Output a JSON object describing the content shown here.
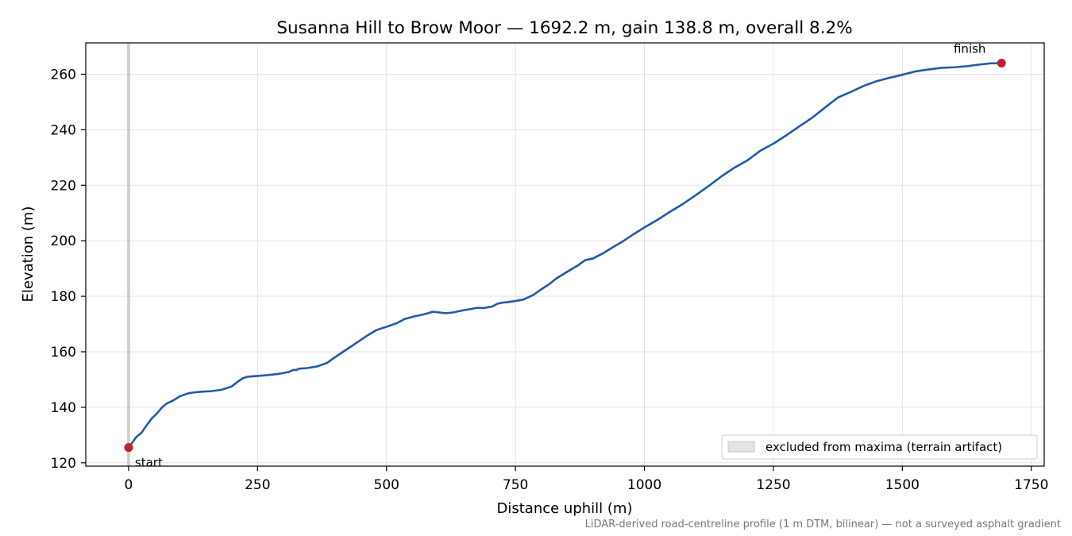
{
  "chart_data": {
    "type": "line",
    "title": "Susanna Hill to Brow Moor — 1692.2 m, gain 138.8 m, overall 8.2%",
    "xlabel": "Distance uphill (m)",
    "ylabel": "Elevation (m)",
    "xlim": [
      -83,
      1775
    ],
    "ylim": [
      118.8,
      271.3
    ],
    "xticks": [
      0,
      250,
      500,
      750,
      1000,
      1250,
      1500,
      1750
    ],
    "yticks": [
      120,
      140,
      160,
      180,
      200,
      220,
      240,
      260
    ],
    "xtick_labels": [
      "0",
      "250",
      "500",
      "750",
      "1000",
      "1250",
      "1500",
      "1750"
    ],
    "ytick_labels": [
      "120",
      "140",
      "160",
      "180",
      "200",
      "220",
      "240",
      "260"
    ],
    "grid": true,
    "series": [
      {
        "color": "#1f5aaa",
        "x": [
          0,
          10,
          15,
          25,
          35,
          45,
          55,
          65,
          75,
          85,
          100,
          115,
          125,
          140,
          160,
          180,
          200,
          210,
          220,
          230,
          250,
          270,
          290,
          310,
          320,
          325,
          330,
          345,
          365,
          385,
          400,
          420,
          440,
          460,
          480,
          500,
          520,
          535,
          555,
          575,
          590,
          600,
          615,
          630,
          645,
          660,
          675,
          690,
          705,
          715,
          725,
          735,
          750,
          765,
          785,
          800,
          815,
          830,
          850,
          870,
          885,
          900,
          920,
          940,
          960,
          980,
          1000,
          1025,
          1050,
          1075,
          1100,
          1125,
          1150,
          1175,
          1200,
          1225,
          1250,
          1275,
          1300,
          1325,
          1350,
          1375,
          1400,
          1425,
          1450,
          1475,
          1500,
          1525,
          1550,
          1575,
          1600,
          1625,
          1645,
          1660,
          1670,
          1690
        ],
        "y": [
          125.5,
          128,
          129.3,
          130.8,
          133.5,
          136,
          137.8,
          140,
          141.5,
          142.3,
          144,
          145,
          145.3,
          145.6,
          145.8,
          146.3,
          147.5,
          149,
          150.3,
          151,
          151.3,
          151.6,
          152,
          152.7,
          153.5,
          153.4,
          153.9,
          154.1,
          154.7,
          156,
          158,
          160.5,
          163,
          165.5,
          167.8,
          169,
          170.3,
          171.8,
          172.8,
          173.6,
          174.4,
          174.2,
          173.9,
          174.2,
          174.8,
          175.3,
          175.8,
          175.8,
          176.3,
          177.3,
          177.7,
          177.9,
          178.3,
          178.8,
          180.5,
          182.5,
          184.3,
          186.5,
          188.8,
          191,
          193,
          193.6,
          195.5,
          197.8,
          200,
          202.5,
          204.8,
          207.5,
          210.5,
          213.3,
          216.5,
          219.8,
          223.3,
          226.4,
          229,
          232.5,
          235,
          238,
          241.2,
          244.3,
          248,
          251.6,
          253.6,
          255.8,
          257.5,
          258.7,
          259.8,
          261,
          261.7,
          262.3,
          262.5,
          262.9,
          263.4,
          263.7,
          263.9,
          264
        ]
      }
    ],
    "markers": [
      {
        "x": 0,
        "y": 125.5,
        "label": "start",
        "color": "#c0202a"
      },
      {
        "x": 1692.2,
        "y": 264.0,
        "label": "finish",
        "color": "#c0202a"
      }
    ],
    "excluded_band": {
      "x0": -3,
      "x1": 3
    },
    "legend": {
      "position": "lower-right",
      "entries": [
        "excluded from maxima (terrain artifact)"
      ]
    },
    "footnote": "LiDAR-derived road-centreline profile (1 m DTM, bilinear) — not a surveyed asphalt gradient"
  }
}
